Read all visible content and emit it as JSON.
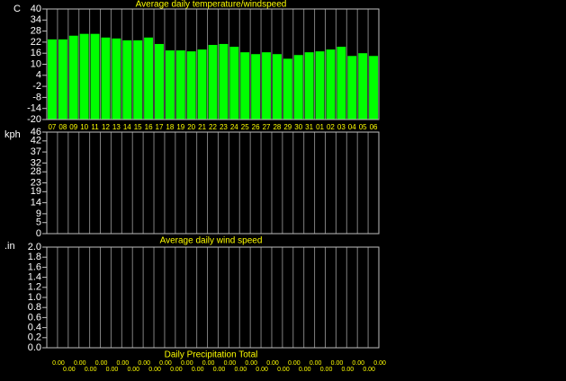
{
  "chart_data": [
    {
      "type": "bar",
      "title": "Average daily temperature/windspeed",
      "unit": "C",
      "categories": [
        "07",
        "08",
        "09",
        "10",
        "11",
        "12",
        "13",
        "14",
        "15",
        "16",
        "17",
        "18",
        "19",
        "20",
        "21",
        "22",
        "23",
        "24",
        "25",
        "26",
        "27",
        "28",
        "29",
        "30",
        "31",
        "01",
        "02",
        "03",
        "04",
        "05",
        "06"
      ],
      "series": [
        {
          "name": "temperature",
          "color": "#00ff00",
          "values": [
            23.5,
            23.5,
            25.5,
            26.5,
            26.5,
            24.5,
            24,
            23,
            23,
            24.5,
            21,
            17.5,
            17.5,
            17,
            18,
            20.5,
            21,
            19.5,
            16.5,
            15.5,
            16.5,
            15.5,
            13,
            15,
            16.5,
            17,
            18,
            19.5,
            14.5,
            16,
            14.5
          ]
        }
      ],
      "ylim": [
        -20,
        40
      ],
      "yticks": [
        40,
        34,
        28,
        22,
        16,
        10,
        4,
        -2,
        -8,
        -14,
        -20
      ],
      "grid": true
    },
    {
      "type": "bar",
      "title": "Average daily wind speed",
      "unit": "kph",
      "ylim": [
        0,
        46
      ],
      "yticks": [
        46,
        42,
        37,
        32,
        28,
        23,
        19,
        14,
        9,
        5,
        0
      ],
      "grid": true
    },
    {
      "type": "bar",
      "title": "Daily Precipitation Total",
      "unit": ".in",
      "series": [
        {
          "name": "precipitation",
          "color": "#00ffff",
          "values": [
            0,
            0,
            0,
            0,
            0,
            0,
            0,
            0,
            0,
            0,
            0,
            0,
            0,
            0,
            0,
            0,
            0,
            0,
            0,
            0,
            0,
            0,
            0,
            0,
            0,
            0,
            0,
            0,
            0,
            0,
            0
          ],
          "value_labels": [
            "0.00",
            "0.00",
            "0.00",
            "0.00",
            "0.00",
            "0.00",
            "0.00",
            "0.00",
            "0.00",
            "0.00",
            "0.00",
            "0.00",
            "0.00",
            "0.00",
            "0.00",
            "0.00",
            "0.00",
            "0.00",
            "0.00",
            "0.00",
            "0.00",
            "0.00",
            "0.00",
            "0.00",
            "0.00",
            "0.00",
            "0.00",
            "0.00",
            "0.00",
            "0.00",
            "0.00"
          ]
        }
      ],
      "ylim": [
        0,
        2
      ],
      "yticks": [
        {
          "value": 2,
          "label": "2.0"
        },
        1.8,
        1.6,
        1.4,
        1.2,
        {
          "value": 1,
          "label": "1.0"
        },
        0.8,
        0.6,
        0.4,
        0.2,
        {
          "value": 0,
          "label": "0.0"
        }
      ],
      "grid": true
    }
  ]
}
